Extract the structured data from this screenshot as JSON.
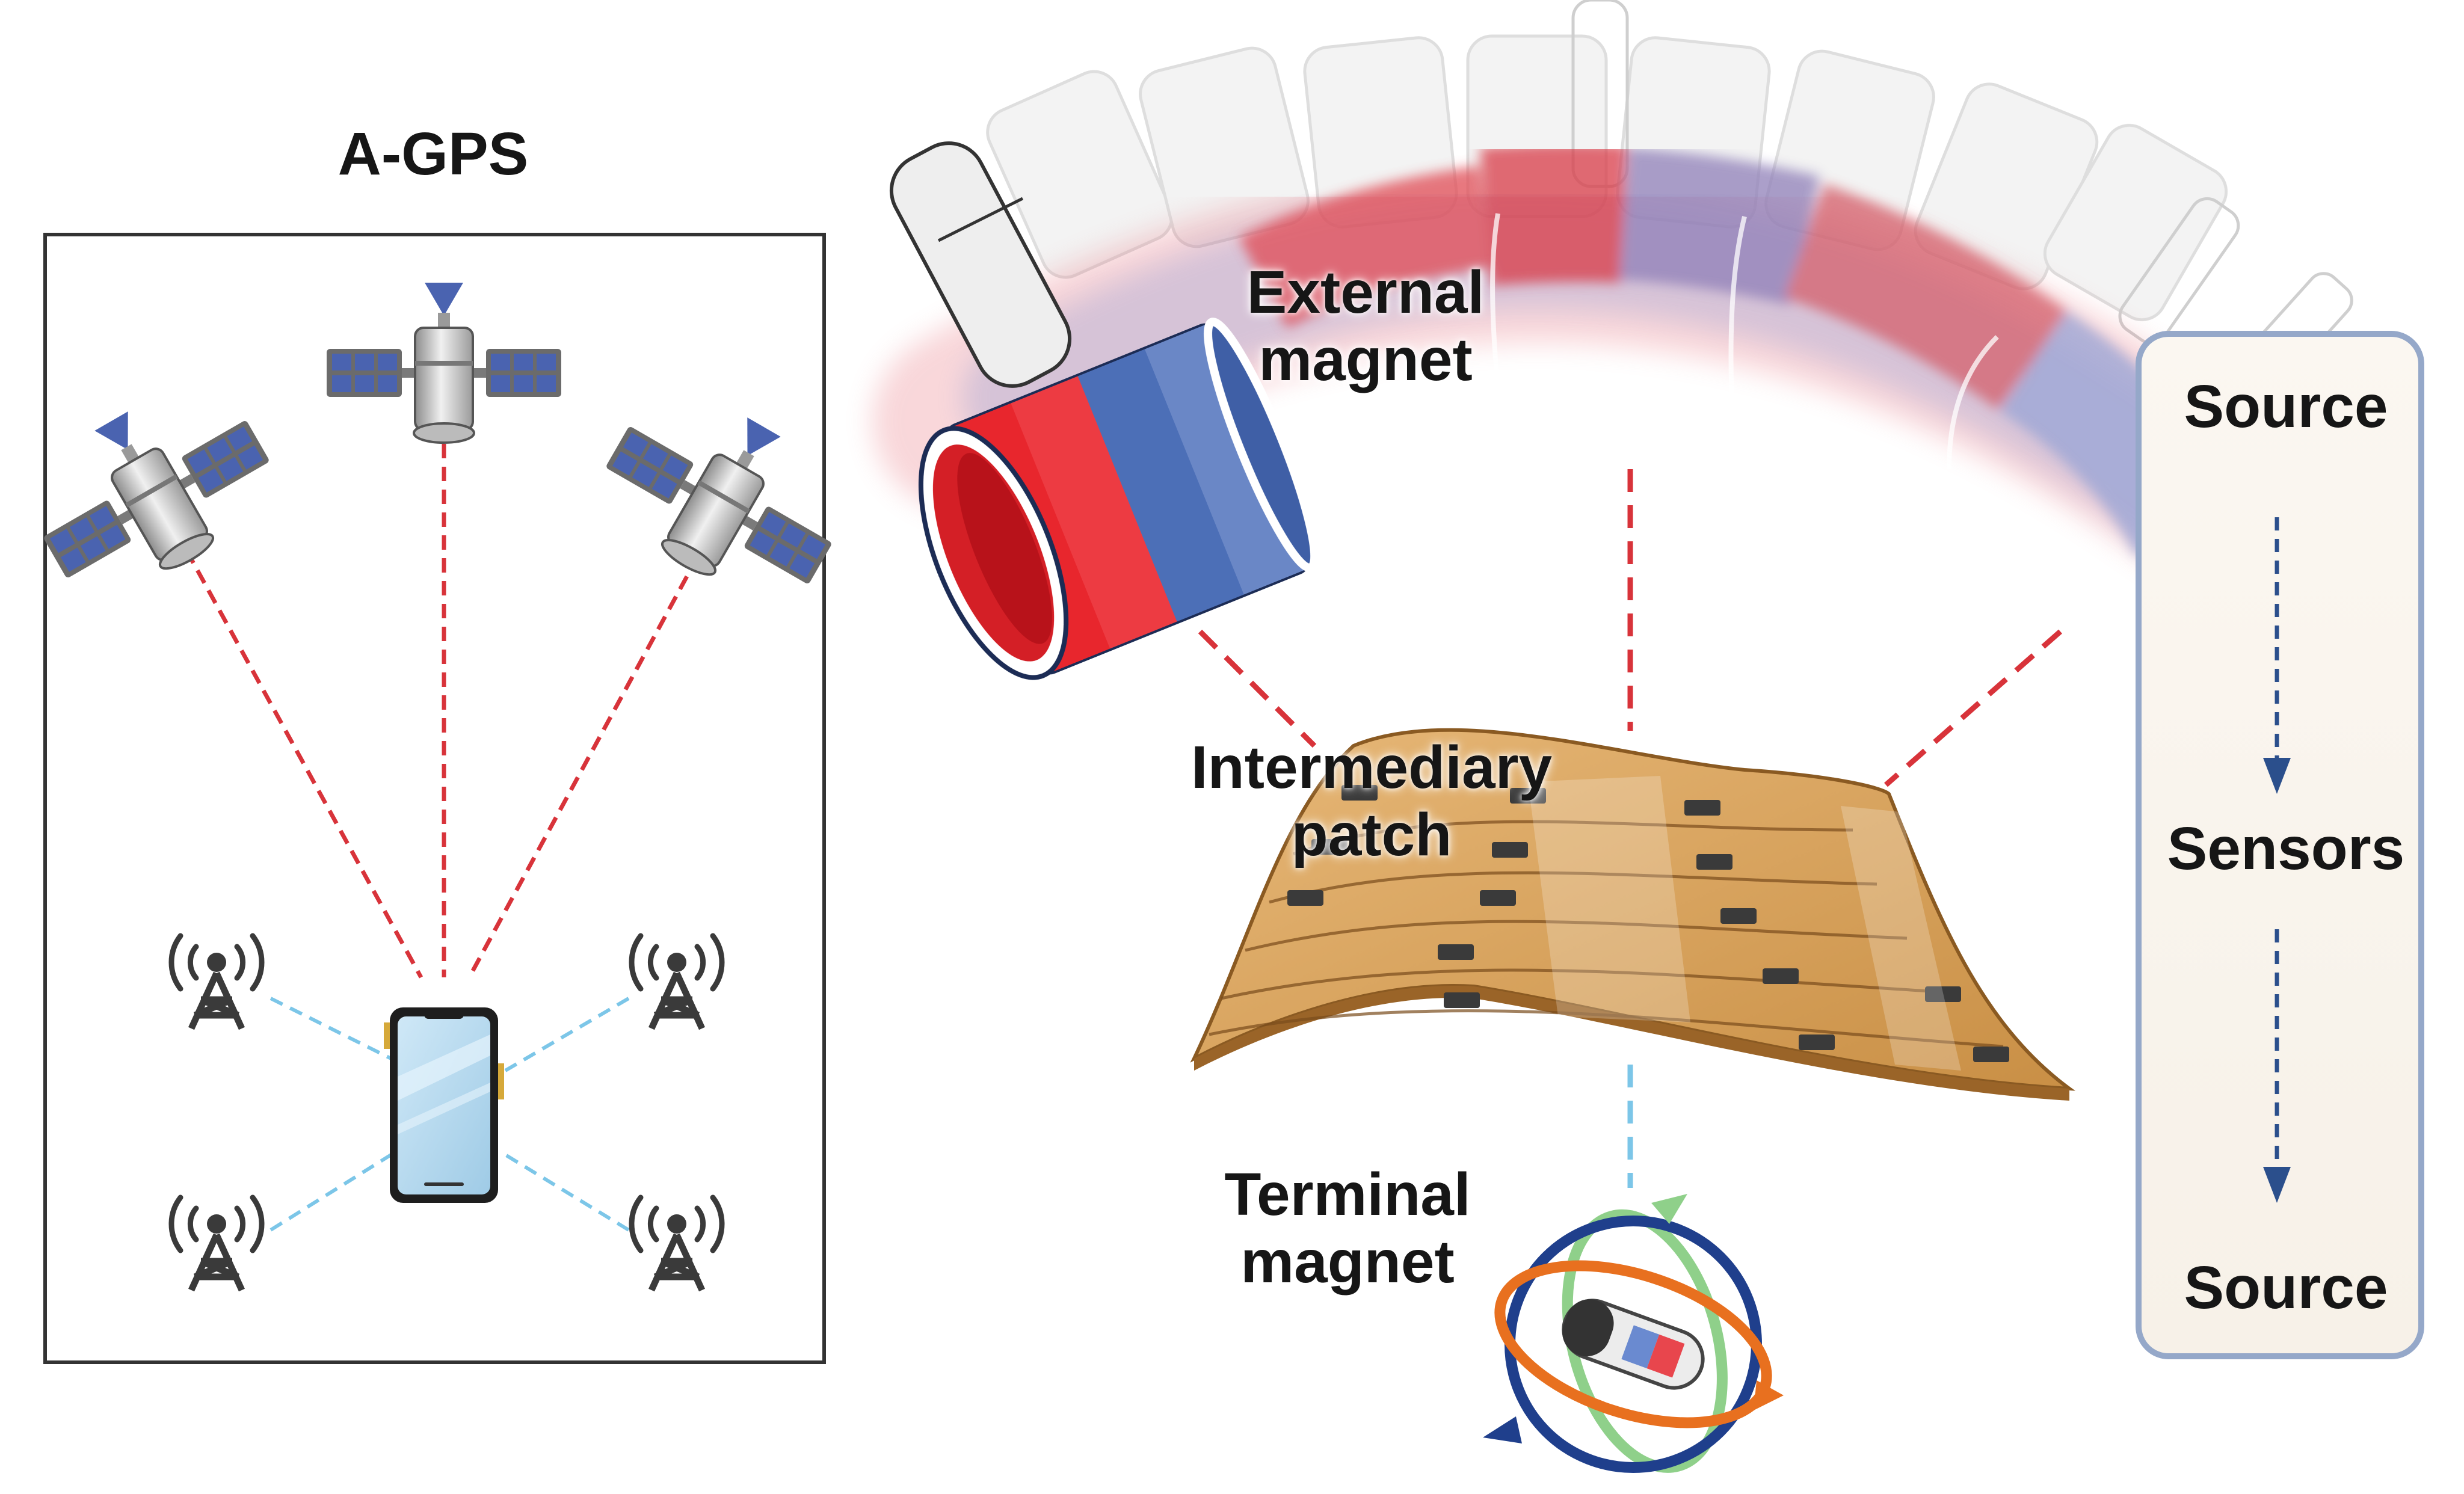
{
  "agps": {
    "title": "A-GPS",
    "satellites": [
      "satellite-icon",
      "satellite-icon",
      "satellite-icon"
    ],
    "towers": [
      "cell-tower-icon",
      "cell-tower-icon",
      "cell-tower-icon",
      "cell-tower-icon"
    ],
    "device": "smartphone-icon"
  },
  "system": {
    "external_label": [
      "External",
      "magnet"
    ],
    "intermediary_label": [
      "Intermediary",
      "patch"
    ],
    "terminal_label": [
      "Terminal",
      "magnet"
    ]
  },
  "flow": {
    "steps": [
      "Source",
      "Sensors",
      "Source"
    ]
  },
  "colors": {
    "red_link": "#d8333a",
    "blue_link": "#7cc6e8",
    "magnet_red": "#e8262d",
    "magnet_blue": "#3f5fa6",
    "patch": "#d9a461",
    "flow_border": "#95a8c9",
    "flow_fill": "#fbf8f3",
    "flow_arrow": "#2b4f8c",
    "satellite_blue": "#4a63b0"
  }
}
